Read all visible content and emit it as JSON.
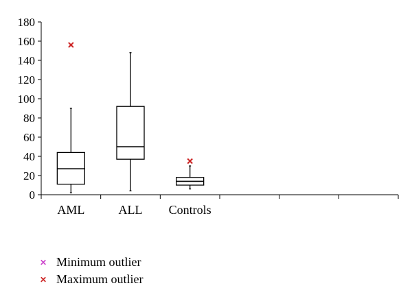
{
  "chart_data": {
    "type": "box",
    "categories": [
      "AML",
      "ALL",
      "Controls",
      "",
      "",
      ""
    ],
    "ylim": [
      0,
      180
    ],
    "yticks": [
      0,
      20,
      40,
      60,
      80,
      100,
      120,
      140,
      160,
      180
    ],
    "boxes": [
      {
        "category": "AML",
        "min": 2,
        "q1": 11,
        "median": 27,
        "q3": 44,
        "max": 90,
        "max_outlier": 156
      },
      {
        "category": "ALL",
        "min": 4,
        "q1": 37,
        "median": 50,
        "q3": 92,
        "max": 148
      },
      {
        "category": "Controls",
        "min": 6,
        "q1": 10,
        "median": 14,
        "q3": 18,
        "max": 30,
        "max_outlier": 35
      }
    ],
    "title": "",
    "xlabel": "",
    "ylabel": "",
    "grid": false,
    "legend_position": "bottom-left",
    "colors": {
      "box": "#000000",
      "min_outlier": "#cc44cc",
      "max_outlier": "#cc2222"
    }
  },
  "legend": {
    "items": [
      {
        "label": "Minimum outlier",
        "marker": "x",
        "color": "#cc44cc"
      },
      {
        "label": "Maximum outlier",
        "marker": "x",
        "color": "#cc2222"
      }
    ]
  }
}
